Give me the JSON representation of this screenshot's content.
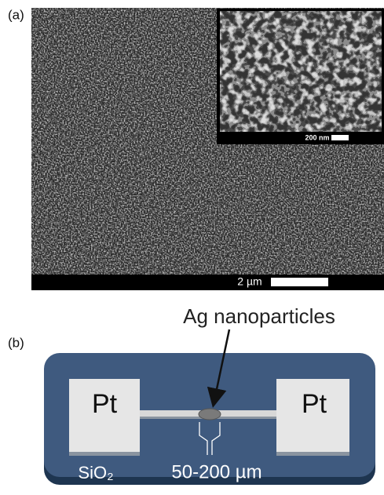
{
  "panel_a": {
    "label": "(a)",
    "scale_bar": "2 µm",
    "inset_scale_bar": "200 nm"
  },
  "panel_b": {
    "label": "(b)",
    "annotation": "Ag nanoparticles",
    "left_electrode": "Pt",
    "right_electrode": "Pt",
    "substrate": "SiO₂",
    "gap": "50-200 µm"
  }
}
